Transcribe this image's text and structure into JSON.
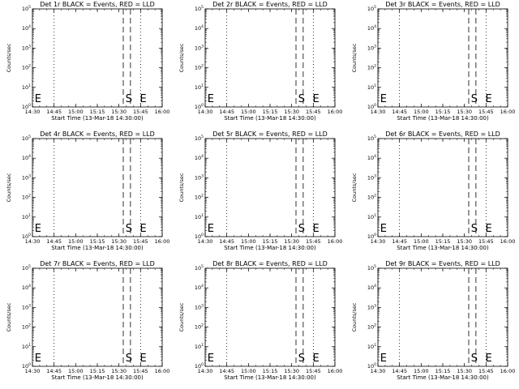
{
  "chart_data": {
    "type": "line",
    "layout": "3x3 grid",
    "xlabel": "Start Time (13-Mar-18 14:30:00)",
    "ylabel": "Counts/sec",
    "x_ticks": [
      "14:30",
      "14:45",
      "15:00",
      "15:15",
      "15:30",
      "15:45",
      "16:00"
    ],
    "xlim_minutes_after_start": [
      0,
      90
    ],
    "y_scale": "log",
    "y_ticks": [
      {
        "sup": "0",
        "exp": 0
      },
      {
        "sup": "1",
        "exp": 1
      },
      {
        "sup": "2",
        "exp": 2
      },
      {
        "sup": "3",
        "exp": 3
      },
      {
        "sup": "4",
        "exp": 4
      },
      {
        "sup": "5",
        "exp": 5
      }
    ],
    "ylim_exponent": [
      0,
      5
    ],
    "dotted_lines_minutes": [
      0,
      15,
      75,
      90
    ],
    "dashed_lines_minutes": [
      63,
      68
    ],
    "markers": [
      {
        "label": "E",
        "minutes": 1
      },
      {
        "label": "S",
        "minutes": 64
      },
      {
        "label": "E",
        "minutes": 74
      }
    ],
    "panels": [
      {
        "title": "Det 1r BLACK = Events, RED = LLD"
      },
      {
        "title": "Det 2r BLACK = Events, RED = LLD"
      },
      {
        "title": "Det 3r BLACK = Events, RED = LLD"
      },
      {
        "title": "Det 4r BLACK = Events, RED = LLD"
      },
      {
        "title": "Det 5r BLACK = Events, RED = LLD"
      },
      {
        "title": "Det 6r BLACK = Events, RED = LLD"
      },
      {
        "title": "Det 7r BLACK = Events, RED = LLD"
      },
      {
        "title": "Det 8r BLACK = Events, RED = LLD"
      },
      {
        "title": "Det 9r BLACK = Events, RED = LLD"
      }
    ],
    "series": [],
    "colors": {
      "events": "#000000",
      "lld": "#ff0000"
    }
  }
}
